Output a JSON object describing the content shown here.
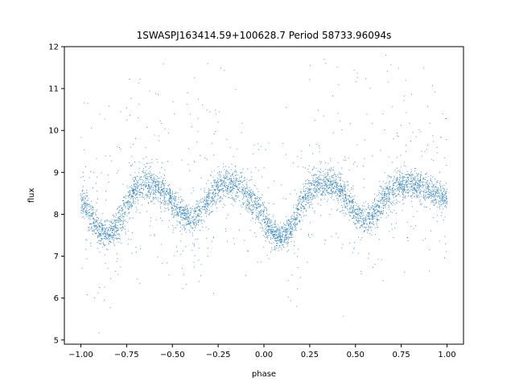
{
  "chart_data": {
    "type": "scatter",
    "title": "1SWASPJ163414.59+100628.7 Period 58733.96094s",
    "xlabel": "phase",
    "ylabel": "flux",
    "xlim": [
      -1.09,
      1.09
    ],
    "ylim": [
      4.9,
      12.0
    ],
    "xticks": [
      -1.0,
      -0.75,
      -0.5,
      -0.25,
      0.0,
      0.25,
      0.5,
      0.75,
      1.0
    ],
    "xtick_labels": [
      "−1.00",
      "−0.75",
      "−0.50",
      "−0.25",
      "0.00",
      "0.25",
      "0.50",
      "0.75",
      "1.00"
    ],
    "yticks": [
      5,
      6,
      7,
      8,
      9,
      10,
      11,
      12
    ],
    "ytick_labels": [
      "5",
      "6",
      "7",
      "8",
      "9",
      "10",
      "11",
      "12"
    ],
    "marker_color": "#1f77b4",
    "grid": false,
    "legend": "none",
    "series": [
      {
        "x": [
          -1.0,
          -0.95,
          -0.9,
          -0.85,
          -0.8,
          -0.75,
          -0.7,
          -0.65,
          -0.6,
          -0.55,
          -0.5,
          -0.45,
          -0.4,
          -0.35,
          -0.3,
          -0.25,
          -0.2,
          -0.15,
          -0.1,
          -0.05,
          0.0,
          0.05,
          0.1,
          0.15,
          0.2,
          0.25,
          0.3,
          0.35,
          0.4,
          0.45,
          0.5,
          0.55,
          0.6,
          0.65,
          0.7,
          0.75,
          0.8,
          0.85,
          0.9,
          0.95,
          1.0
        ],
        "y": [
          8.4,
          8.0,
          7.6,
          7.5,
          7.7,
          8.2,
          8.6,
          8.75,
          8.7,
          8.55,
          8.3,
          8.0,
          7.85,
          8.0,
          8.4,
          8.65,
          8.75,
          8.7,
          8.5,
          8.2,
          7.9,
          7.55,
          7.45,
          7.7,
          8.2,
          8.55,
          8.7,
          8.75,
          8.65,
          8.4,
          8.05,
          7.85,
          8.0,
          8.35,
          8.6,
          8.7,
          8.75,
          8.65,
          8.55,
          8.45,
          8.4
        ],
        "band_halfwidth": [
          0.35,
          0.35,
          0.35,
          0.3,
          0.35,
          0.4,
          0.35,
          0.35,
          0.35,
          0.35,
          0.35,
          0.3,
          0.3,
          0.3,
          0.35,
          0.35,
          0.35,
          0.35,
          0.35,
          0.35,
          0.35,
          0.3,
          0.3,
          0.3,
          0.35,
          0.35,
          0.35,
          0.35,
          0.35,
          0.35,
          0.3,
          0.3,
          0.3,
          0.35,
          0.35,
          0.35,
          0.35,
          0.35,
          0.35,
          0.35,
          0.35
        ]
      }
    ]
  }
}
